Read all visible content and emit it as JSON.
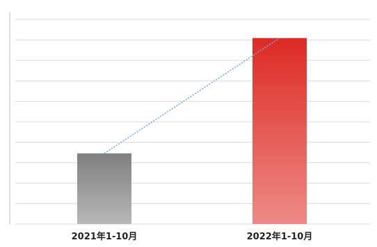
{
  "chart_data": {
    "type": "bar",
    "categories": [
      "2021年1-10月",
      "2022年1-10月"
    ],
    "values": [
      38,
      100
    ],
    "title": "",
    "xlabel": "",
    "ylabel": "",
    "ylim": [
      0,
      110
    ],
    "grid": true,
    "legend": "none",
    "trendline": true,
    "colors": {
      "bar_2021_top": "#7f7f7f",
      "bar_2021_bottom": "#b8b8b8",
      "bar_2022_top": "#dd2a25",
      "bar_2022_bottom": "#ee8a86",
      "trendline": "#6fa8dc",
      "grid": "#d9d9d9",
      "axis": "#bfbfbf"
    }
  }
}
